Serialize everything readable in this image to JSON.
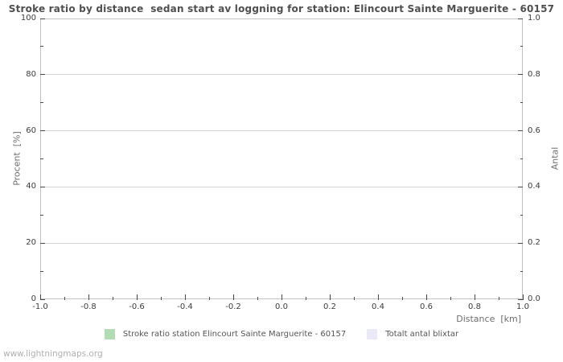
{
  "page": {
    "watermark": "www.lightningmaps.org"
  },
  "colors": {
    "grid": "#d4d4d4",
    "frame": "#c3c3c3",
    "tick_mark": "#4a4a4a",
    "tick_label": "#3c3c3c",
    "axis_title": "#6e6e6e",
    "title": "#4f4f4f",
    "watermark": "#b0b0b0",
    "series_green": "#b2ddb2",
    "series_lavender": "#e9e9f8"
  },
  "chart_data": {
    "type": "bar",
    "title": "Stroke ratio by distance  sedan start av loggning for station: Elincourt Sainte Marguerite - 60157",
    "xlabel": "Distance  [km]",
    "ylabel_left": "Procent  [%]",
    "ylabel_right": "Antal",
    "xlim": [
      -1.0,
      1.0
    ],
    "ylim_left": [
      0,
      100
    ],
    "ylim_right": [
      0.0,
      1.0
    ],
    "grid": "horizontal-only",
    "legend_position": "bottom-center",
    "x_ticks": [
      "-1.0",
      "-0.8",
      "-0.6",
      "-0.4",
      "-0.2",
      "0.0",
      "0.2",
      "0.4",
      "0.6",
      "0.8",
      "1.0"
    ],
    "x_minor_tick_step": 0.1,
    "y_ticks_left": [
      "0",
      "20",
      "40",
      "60",
      "80",
      "100"
    ],
    "y_ticks_right": [
      "0.0",
      "0.2",
      "0.4",
      "0.6",
      "0.8",
      "1.0"
    ],
    "y_minor_tick_step_left": 10,
    "series": [
      {
        "name": "Stroke ratio station Elincourt Sainte Marguerite - 60157",
        "color": "#b2ddb2",
        "values": []
      },
      {
        "name": "Totalt antal blixtar",
        "color": "#e9e9f8",
        "values": []
      }
    ]
  }
}
